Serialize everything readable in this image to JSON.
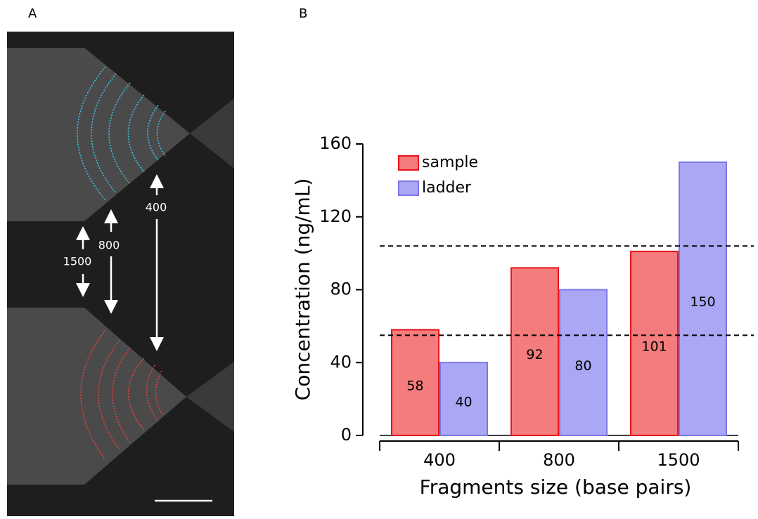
{
  "panel_labels": [
    "A",
    "B"
  ],
  "image_labels": [
    "400",
    "800",
    "1500"
  ],
  "chart_data": {
    "type": "bar",
    "x_label": "Fragments size (base pairs)",
    "y_label": "Concentration (ng/mL)",
    "categories": [
      "400",
      "800",
      "1500"
    ],
    "series": [
      {
        "name": "sample",
        "color": "#f47c7c",
        "edge": "#e8141e",
        "values": [
          58,
          92,
          101
        ]
      },
      {
        "name": "ladder",
        "color": "#aaa8f5",
        "edge": "#7b78e8",
        "values": [
          40,
          80,
          150
        ]
      }
    ],
    "ylim": [
      0,
      160
    ],
    "yticks": [
      0,
      40,
      80,
      120,
      160
    ],
    "hlines": [
      104,
      55
    ],
    "legend": "upper left"
  }
}
